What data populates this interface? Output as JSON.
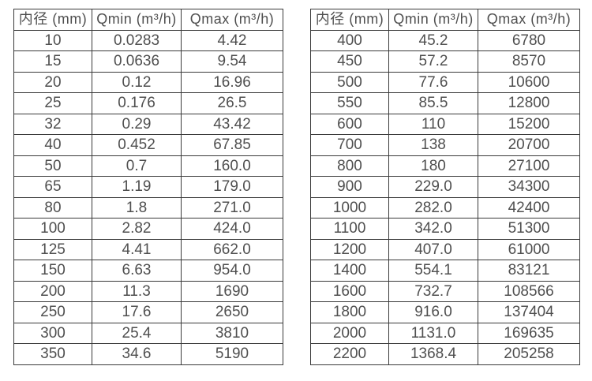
{
  "page": {
    "background_color": "#ffffff",
    "border_color": "#3a3a3a",
    "text_color": "#4f4f4f",
    "description": "Two side-by-side specification tables of flow meter inner diameter vs minimum and maximum flow rate"
  },
  "tables": [
    {
      "name": "small-diameter-flow-range",
      "headers": [
        "内径 (mm)",
        "Qmin (m³/h)",
        "Qmax (m³/h)"
      ],
      "rows": [
        [
          "10",
          "0.0283",
          "4.42"
        ],
        [
          "15",
          "0.0636",
          "9.54"
        ],
        [
          "20",
          "0.12",
          "16.96"
        ],
        [
          "25",
          "0.176",
          "26.5"
        ],
        [
          "32",
          "0.29",
          "43.42"
        ],
        [
          "40",
          "0.452",
          "67.85"
        ],
        [
          "50",
          "0.7",
          "160.0"
        ],
        [
          "65",
          "1.19",
          "179.0"
        ],
        [
          "80",
          "1.8",
          "271.0"
        ],
        [
          "100",
          "2.82",
          "424.0"
        ],
        [
          "125",
          "4.41",
          "662.0"
        ],
        [
          "150",
          "6.63",
          "954.0"
        ],
        [
          "200",
          "11.3",
          "1690"
        ],
        [
          "250",
          "17.6",
          "2650"
        ],
        [
          "300",
          "25.4",
          "3810"
        ],
        [
          "350",
          "34.6",
          "5190"
        ]
      ]
    },
    {
      "name": "large-diameter-flow-range",
      "headers": [
        "内径 (mm)",
        "Qmin (m³/h)",
        "Qmax (m³/h)"
      ],
      "rows": [
        [
          "400",
          "45.2",
          "6780"
        ],
        [
          "450",
          "57.2",
          "8570"
        ],
        [
          "500",
          "77.6",
          "10600"
        ],
        [
          "550",
          "85.5",
          "12800"
        ],
        [
          "600",
          "110",
          "15200"
        ],
        [
          "700",
          "138",
          "20700"
        ],
        [
          "800",
          "180",
          "27100"
        ],
        [
          "900",
          "229.0",
          "34300"
        ],
        [
          "1000",
          "282.0",
          "42400"
        ],
        [
          "1100",
          "342.0",
          "51300"
        ],
        [
          "1200",
          "407.0",
          "61000"
        ],
        [
          "1400",
          "554.1",
          "83121"
        ],
        [
          "1600",
          "732.7",
          "108566"
        ],
        [
          "1800",
          "916.0",
          "137404"
        ],
        [
          "2000",
          "1131.0",
          "169635"
        ],
        [
          "2200",
          "1368.4",
          "205258"
        ]
      ]
    }
  ]
}
